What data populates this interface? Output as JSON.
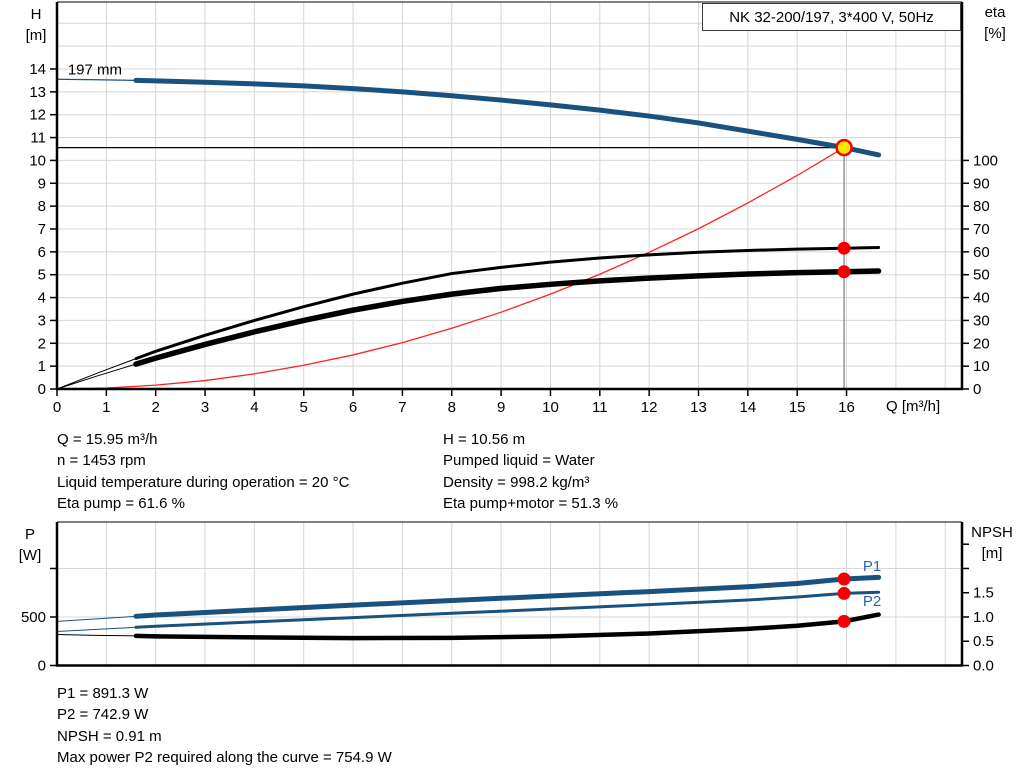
{
  "labels": {
    "title": "NK 32-200/197, 3*400 V, 50Hz",
    "top_left_axis": [
      "H",
      "[m]"
    ],
    "top_right_axis": [
      "eta",
      "[%]"
    ],
    "bottom_left_axis": [
      "P",
      "[W]"
    ],
    "bottom_right_axis": [
      "NPSH",
      "[m]"
    ],
    "x_axis": "Q [m³/h]"
  },
  "info_top": {
    "left": [
      "Q = 15.95 m³/h",
      "n = 1453 rpm",
      "Liquid temperature during operation = 20 °C",
      "Eta pump = 61.6 %"
    ],
    "right": [
      "H = 10.56 m",
      "Pumped liquid = Water",
      "Density = 998.2 kg/m³",
      "Eta pump+motor = 51.3 %"
    ]
  },
  "info_bottom": [
    "P1 = 891.3 W",
    "P2 = 742.9 W",
    "NPSH = 0.91 m",
    "Max power P2 required along the curve = 754.9 W"
  ],
  "colors": {
    "blue": "#19527F",
    "label_blue": "#2368AE",
    "red": "#FF2222",
    "marker_red": "#F50000",
    "duty_yellow": "#FFE600",
    "black": "#000000",
    "gray": "#8C8C8C",
    "grid": "#D7D7D7"
  },
  "chart_data": [
    {
      "type": "line",
      "title": "NK 32-200/197, 3*400 V, 50Hz",
      "impeller_label": "197 mm",
      "x": {
        "label": "Q [m³/h]",
        "lim": [
          0,
          18.34
        ],
        "ticks": [
          0,
          1,
          2,
          3,
          4,
          5,
          6,
          7,
          8,
          9,
          10,
          11,
          12,
          13,
          14,
          15,
          16
        ],
        "tick_labels": [
          "0",
          "1",
          "2",
          "3",
          "4",
          "5",
          "6",
          "7",
          "8",
          "9",
          "10",
          "11",
          "12",
          "13",
          "14",
          "15",
          "16"
        ],
        "grid_step": 1
      },
      "y_left": {
        "label": "H [m]",
        "lim": [
          0,
          16.93
        ],
        "ticks": [
          0,
          1,
          2,
          3,
          4,
          5,
          6,
          7,
          8,
          9,
          10,
          11,
          12,
          13,
          14
        ],
        "tick_labels": [
          "0",
          "1",
          "2",
          "3",
          "4",
          "5",
          "6",
          "7",
          "8",
          "9",
          "10",
          "11",
          "12",
          "13",
          "14"
        ],
        "grid": [
          1,
          2,
          3,
          4,
          5,
          6,
          7,
          8,
          9,
          10,
          11,
          12,
          13,
          14,
          15,
          16
        ]
      },
      "y_right": {
        "label": "eta [%]",
        "factor": 0.1,
        "ticks": [
          0,
          10,
          20,
          30,
          40,
          50,
          60,
          70,
          80,
          90,
          100
        ],
        "tick_labels": [
          "0",
          "10",
          "20",
          "30",
          "40",
          "50",
          "60",
          "70",
          "80",
          "90",
          "100"
        ]
      },
      "series": [
        {
          "name": "system-curve",
          "axis": "left",
          "color_key": "red",
          "thin": 1.3,
          "thick": 0,
          "thick_from": null,
          "points": [
            [
              0,
              0
            ],
            [
              1,
              0.04
            ],
            [
              2,
              0.17
            ],
            [
              3,
              0.37
            ],
            [
              4,
              0.66
            ],
            [
              5,
              1.04
            ],
            [
              6,
              1.49
            ],
            [
              7,
              2.03
            ],
            [
              8,
              2.66
            ],
            [
              9,
              3.36
            ],
            [
              10,
              4.15
            ],
            [
              11,
              5.02
            ],
            [
              12,
              5.98
            ],
            [
              13,
              7.01
            ],
            [
              14,
              8.14
            ],
            [
              15,
              9.34
            ],
            [
              15.95,
              10.56
            ]
          ]
        },
        {
          "name": "eta-pump-curve",
          "axis": "right",
          "color_key": "black",
          "thin": 1,
          "thick": 3,
          "thick_from": 1.6,
          "points": [
            [
              0,
              0
            ],
            [
              0.8,
              6.8
            ],
            [
              1.6,
              13.3
            ],
            [
              2,
              16.5
            ],
            [
              3,
              23.5
            ],
            [
              4,
              30
            ],
            [
              5,
              36
            ],
            [
              6,
              41.5
            ],
            [
              7,
              46.3
            ],
            [
              8,
              50.5
            ],
            [
              9,
              53.2
            ],
            [
              10,
              55.5
            ],
            [
              11,
              57.3
            ],
            [
              12,
              58.7
            ],
            [
              13,
              59.8
            ],
            [
              14,
              60.6
            ],
            [
              15,
              61.2
            ],
            [
              15.95,
              61.6
            ],
            [
              16.65,
              61.9
            ]
          ]
        },
        {
          "name": "eta-pump-motor-curve",
          "axis": "right",
          "color_key": "black",
          "thin": 1,
          "thick": 5.5,
          "thick_from": 1.6,
          "points": [
            [
              0,
              0
            ],
            [
              0.8,
              5.6
            ],
            [
              1.6,
              10.9
            ],
            [
              2,
              13.5
            ],
            [
              3,
              19.5
            ],
            [
              4,
              25
            ],
            [
              5,
              30
            ],
            [
              6,
              34.5
            ],
            [
              7,
              38.3
            ],
            [
              8,
              41.5
            ],
            [
              9,
              44
            ],
            [
              10,
              45.8
            ],
            [
              11,
              47.3
            ],
            [
              12,
              48.5
            ],
            [
              13,
              49.5
            ],
            [
              14,
              50.3
            ],
            [
              15,
              50.9
            ],
            [
              15.95,
              51.3
            ],
            [
              16.65,
              51.6
            ]
          ]
        },
        {
          "name": "head-curve",
          "axis": "left",
          "color_key": "blue",
          "thin": 1.2,
          "thick": 5,
          "thick_from": 1.6,
          "points": [
            [
              0,
              13.55
            ],
            [
              0.8,
              13.53
            ],
            [
              1.6,
              13.5
            ],
            [
              2,
              13.48
            ],
            [
              3,
              13.42
            ],
            [
              4,
              13.35
            ],
            [
              5,
              13.26
            ],
            [
              6,
              13.14
            ],
            [
              7,
              13.0
            ],
            [
              8,
              12.83
            ],
            [
              9,
              12.64
            ],
            [
              10,
              12.43
            ],
            [
              11,
              12.2
            ],
            [
              12,
              11.94
            ],
            [
              13,
              11.64
            ],
            [
              14,
              11.28
            ],
            [
              15,
              10.92
            ],
            [
              15.95,
              10.56
            ],
            [
              16.65,
              10.24
            ]
          ]
        }
      ],
      "guides": [
        {
          "dir": "h",
          "at": 10.56,
          "from": 0,
          "to": 15.95,
          "color_key": "black",
          "w": 1.3,
          "name": "duty-head-line"
        },
        {
          "dir": "v",
          "at": 15.95,
          "from": 0,
          "to": 10.56,
          "color_key": "gray",
          "w": 1.4,
          "name": "duty-flow-line"
        }
      ],
      "markers": [
        {
          "name": "eta-pump-point",
          "x": 15.95,
          "y": 61.6,
          "axis": "right",
          "style": "dot"
        },
        {
          "name": "eta-pump-motor-point",
          "x": 15.95,
          "y": 51.3,
          "axis": "right",
          "style": "dot"
        },
        {
          "name": "duty-point",
          "x": 15.95,
          "y": 10.56,
          "axis": "left",
          "style": "duty"
        }
      ],
      "annotations": [
        {
          "text": "197 mm",
          "x": 0.22,
          "y": 13.75,
          "color_key": "black",
          "size": 15,
          "name": "impeller-diameter-label"
        }
      ]
    },
    {
      "type": "line",
      "x": {
        "label": "",
        "lim": [
          0,
          18.34
        ],
        "ticks": [],
        "tick_labels": [],
        "grid_step": 1
      },
      "y_left": {
        "label": "P [W]",
        "lim": [
          0,
          1479
        ],
        "ticks": [
          0,
          500,
          1000
        ],
        "tick_labels": [
          "0",
          "500",
          ""
        ],
        "grid": [
          500,
          1000
        ]
      },
      "y_right": {
        "label": "NPSH [m]",
        "factor": 500,
        "ticks": [
          0,
          0.5,
          1,
          1.5,
          2,
          2.5
        ],
        "tick_labels": [
          "0.0",
          "0.5",
          "1.0",
          "1.5",
          "",
          ""
        ]
      },
      "series": [
        {
          "name": "p1-curve",
          "axis": "left",
          "color_key": "blue",
          "thin": 1,
          "thick": 5,
          "thick_from": 1.6,
          "points": [
            [
              0,
              455
            ],
            [
              0.8,
              481
            ],
            [
              1.6,
              507
            ],
            [
              2,
              520
            ],
            [
              4,
              572
            ],
            [
              6,
              622
            ],
            [
              8,
              670
            ],
            [
              10,
              716
            ],
            [
              12,
              762
            ],
            [
              14,
              812
            ],
            [
              15,
              845
            ],
            [
              15.95,
              891.3
            ],
            [
              16.65,
              908
            ]
          ]
        },
        {
          "name": "p2-curve",
          "axis": "left",
          "color_key": "blue",
          "thin": 1,
          "thick": 3,
          "thick_from": 1.6,
          "points": [
            [
              0,
              350
            ],
            [
              0.8,
              372
            ],
            [
              1.6,
              394
            ],
            [
              2,
              405
            ],
            [
              4,
              450
            ],
            [
              6,
              494
            ],
            [
              8,
              538
            ],
            [
              10,
              582
            ],
            [
              12,
              627
            ],
            [
              14,
              675
            ],
            [
              15,
              706
            ],
            [
              15.95,
              742.9
            ],
            [
              16.65,
              754.9
            ]
          ]
        },
        {
          "name": "npsh-curve",
          "axis": "right",
          "color_key": "black",
          "thin": 1,
          "thick": 4.5,
          "thick_from": 1.6,
          "points": [
            [
              0,
              0.64
            ],
            [
              0.8,
              0.62
            ],
            [
              1.6,
              0.61
            ],
            [
              2,
              0.6
            ],
            [
              4,
              0.58
            ],
            [
              6,
              0.565
            ],
            [
              8,
              0.57
            ],
            [
              10,
              0.6
            ],
            [
              12,
              0.66
            ],
            [
              14,
              0.755
            ],
            [
              15,
              0.82
            ],
            [
              15.95,
              0.91
            ],
            [
              16.65,
              1.05
            ]
          ]
        }
      ],
      "guides": [],
      "markers": [
        {
          "name": "p1-point",
          "x": 15.95,
          "y": 891.3,
          "axis": "left",
          "style": "dot"
        },
        {
          "name": "p2-point",
          "x": 15.95,
          "y": 742.9,
          "axis": "left",
          "style": "dot"
        },
        {
          "name": "npsh-point",
          "x": 15.95,
          "y": 0.91,
          "axis": "right",
          "style": "dot"
        }
      ],
      "annotations": [
        {
          "text": "P1",
          "x": 16.33,
          "y": 975,
          "color_key": "label_blue",
          "size": 15,
          "name": "p1-curve-label"
        },
        {
          "text": "P2",
          "x": 16.33,
          "y": 615,
          "color_key": "label_blue",
          "size": 15,
          "name": "p2-curve-label"
        }
      ]
    }
  ]
}
